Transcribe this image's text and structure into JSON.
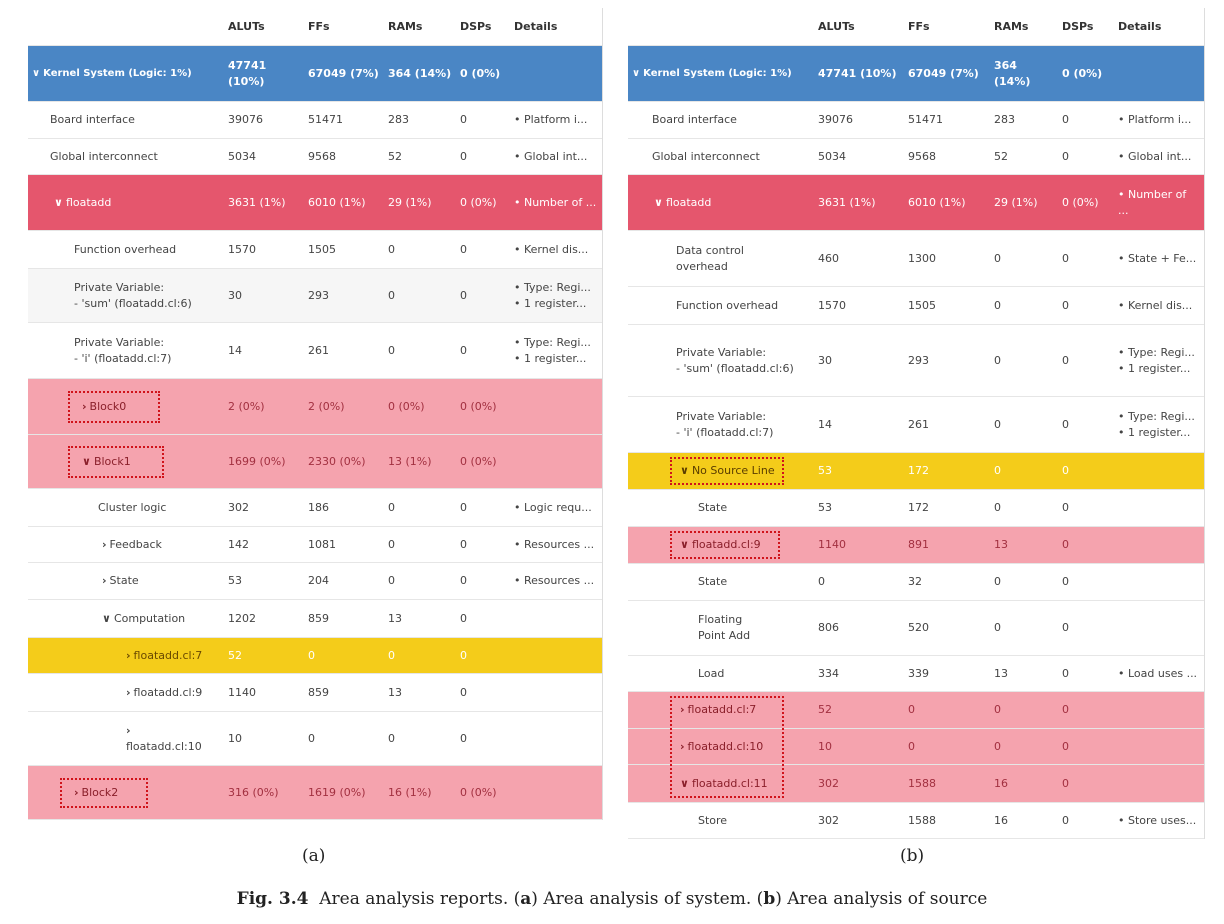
{
  "panel_a": {
    "headers": {
      "aluts": "ALUTs",
      "ffs": "FFs",
      "rams": "RAMs",
      "dsps": "DSPs",
      "details": "Details"
    },
    "rows": [
      {
        "name": "Kernel System (Logic: 1%)",
        "aluts": "47741 (10%)",
        "ffs": "67049 (7%)",
        "rams": "364 (14%)",
        "dsps": "0 (0%)",
        "details": ""
      },
      {
        "name": "Board interface",
        "aluts": "39076",
        "ffs": "51471",
        "rams": "283",
        "dsps": "0",
        "details": "• Platform i..."
      },
      {
        "name": "Global interconnect",
        "aluts": "5034",
        "ffs": "9568",
        "rams": "52",
        "dsps": "0",
        "details": "• Global int..."
      },
      {
        "name": "floatadd",
        "aluts": "3631 (1%)",
        "ffs": "6010 (1%)",
        "rams": "29 (1%)",
        "dsps": "0 (0%)",
        "details": "• Number of ..."
      },
      {
        "name": "Function overhead",
        "aluts": "1570",
        "ffs": "1505",
        "rams": "0",
        "dsps": "0",
        "details": "• Kernel dis..."
      },
      {
        "name_line1": "Private Variable:",
        "name_line2": "- 'sum' (floatadd.cl:6)",
        "aluts": "30",
        "ffs": "293",
        "rams": "0",
        "dsps": "0",
        "details_line1": "• Type: Regi...",
        "details_line2": "• 1 register..."
      },
      {
        "name_line1": "Private Variable:",
        "name_line2": "- 'i' (floatadd.cl:7)",
        "aluts": "14",
        "ffs": "261",
        "rams": "0",
        "dsps": "0",
        "details_line1": "• Type: Regi...",
        "details_line2": "• 1 register..."
      },
      {
        "name": "Block0",
        "aluts": "2 (0%)",
        "ffs": "2 (0%)",
        "rams": "0 (0%)",
        "dsps": "0 (0%)",
        "details": ""
      },
      {
        "name": "Block1",
        "aluts": "1699 (0%)",
        "ffs": "2330 (0%)",
        "rams": "13 (1%)",
        "dsps": "0 (0%)",
        "details": ""
      },
      {
        "name": "Cluster logic",
        "aluts": "302",
        "ffs": "186",
        "rams": "0",
        "dsps": "0",
        "details": "• Logic requ..."
      },
      {
        "name": "Feedback",
        "aluts": "142",
        "ffs": "1081",
        "rams": "0",
        "dsps": "0",
        "details": "• Resources ..."
      },
      {
        "name": "State",
        "aluts": "53",
        "ffs": "204",
        "rams": "0",
        "dsps": "0",
        "details": "• Resources ..."
      },
      {
        "name": "Computation",
        "aluts": "1202",
        "ffs": "859",
        "rams": "13",
        "dsps": "0",
        "details": ""
      },
      {
        "name": "floatadd.cl:7",
        "aluts": "52",
        "ffs": "0",
        "rams": "0",
        "dsps": "0",
        "details": ""
      },
      {
        "name": "floatadd.cl:9",
        "aluts": "1140",
        "ffs": "859",
        "rams": "13",
        "dsps": "0",
        "details": ""
      },
      {
        "name": "floatadd.cl:10",
        "aluts": "10",
        "ffs": "0",
        "rams": "0",
        "dsps": "0",
        "details": ""
      },
      {
        "name": "Block2",
        "aluts": "316 (0%)",
        "ffs": "1619 (0%)",
        "rams": "16 (1%)",
        "dsps": "0 (0%)",
        "details": ""
      }
    ]
  },
  "panel_b": {
    "headers": {
      "aluts": "ALUTs",
      "ffs": "FFs",
      "rams": "RAMs",
      "dsps": "DSPs",
      "details": "Details"
    },
    "rows": [
      {
        "name": "Kernel System (Logic: 1%)",
        "aluts": "47741 (10%)",
        "ffs": "67049 (7%)",
        "rams": "364 (14%)",
        "dsps": "0 (0%)",
        "details": ""
      },
      {
        "name": "Board interface",
        "aluts": "39076",
        "ffs": "51471",
        "rams": "283",
        "dsps": "0",
        "details": "• Platform i..."
      },
      {
        "name": "Global interconnect",
        "aluts": "5034",
        "ffs": "9568",
        "rams": "52",
        "dsps": "0",
        "details": "• Global int..."
      },
      {
        "name": "floatadd",
        "aluts": "3631 (1%)",
        "ffs": "6010 (1%)",
        "rams": "29 (1%)",
        "dsps": "0 (0%)",
        "details": "• Number of ..."
      },
      {
        "name": "Data control overhead",
        "aluts": "460",
        "ffs": "1300",
        "rams": "0",
        "dsps": "0",
        "details": "• State + Fe..."
      },
      {
        "name": "Function overhead",
        "aluts": "1570",
        "ffs": "1505",
        "rams": "0",
        "dsps": "0",
        "details": "• Kernel dis..."
      },
      {
        "name_line1": "Private Variable:",
        "name_line2": "- 'sum' (floatadd.cl:6)",
        "aluts": "30",
        "ffs": "293",
        "rams": "0",
        "dsps": "0",
        "details_line1": "• Type: Regi...",
        "details_line2": "• 1 register..."
      },
      {
        "name_line1": "Private Variable:",
        "name_line2": "- 'i' (floatadd.cl:7)",
        "aluts": "14",
        "ffs": "261",
        "rams": "0",
        "dsps": "0",
        "details_line1": "• Type: Regi...",
        "details_line2": "• 1 register..."
      },
      {
        "name": "No Source Line",
        "aluts": "53",
        "ffs": "172",
        "rams": "0",
        "dsps": "0",
        "details": ""
      },
      {
        "name": "State",
        "aluts": "53",
        "ffs": "172",
        "rams": "0",
        "dsps": "0",
        "details": ""
      },
      {
        "name": "floatadd.cl:9",
        "aluts": "1140",
        "ffs": "891",
        "rams": "13",
        "dsps": "0",
        "details": ""
      },
      {
        "name": "State",
        "aluts": "0",
        "ffs": "32",
        "rams": "0",
        "dsps": "0",
        "details": ""
      },
      {
        "name": "Floating Point Add",
        "aluts": "806",
        "ffs": "520",
        "rams": "0",
        "dsps": "0",
        "details": ""
      },
      {
        "name": "Load",
        "aluts": "334",
        "ffs": "339",
        "rams": "13",
        "dsps": "0",
        "details": "• Load uses ..."
      },
      {
        "name": "floatadd.cl:7",
        "aluts": "52",
        "ffs": "0",
        "rams": "0",
        "dsps": "0",
        "details": ""
      },
      {
        "name": "floatadd.cl:10",
        "aluts": "10",
        "ffs": "0",
        "rams": "0",
        "dsps": "0",
        "details": ""
      },
      {
        "name": "floatadd.cl:11",
        "aluts": "302",
        "ffs": "1588",
        "rams": "16",
        "dsps": "0",
        "details": ""
      },
      {
        "name": "Store",
        "aluts": "302",
        "ffs": "1588",
        "rams": "16",
        "dsps": "0",
        "details": "• Store uses..."
      }
    ]
  },
  "labels": {
    "a": "(a)",
    "b": "(b)"
  },
  "caption": {
    "prefix": "Fig. 3.4",
    "text_1": "Area analysis reports. (",
    "a": "a",
    "text_2": ") Area analysis of system. (",
    "b": "b",
    "text_3": ") Area analysis of source"
  },
  "colors": {
    "blue": "#4a86c5",
    "red": "#e5566d",
    "pink": "#f5a3ae",
    "yellow": "#f4cc1a",
    "highlight_box": "#d0131b"
  }
}
